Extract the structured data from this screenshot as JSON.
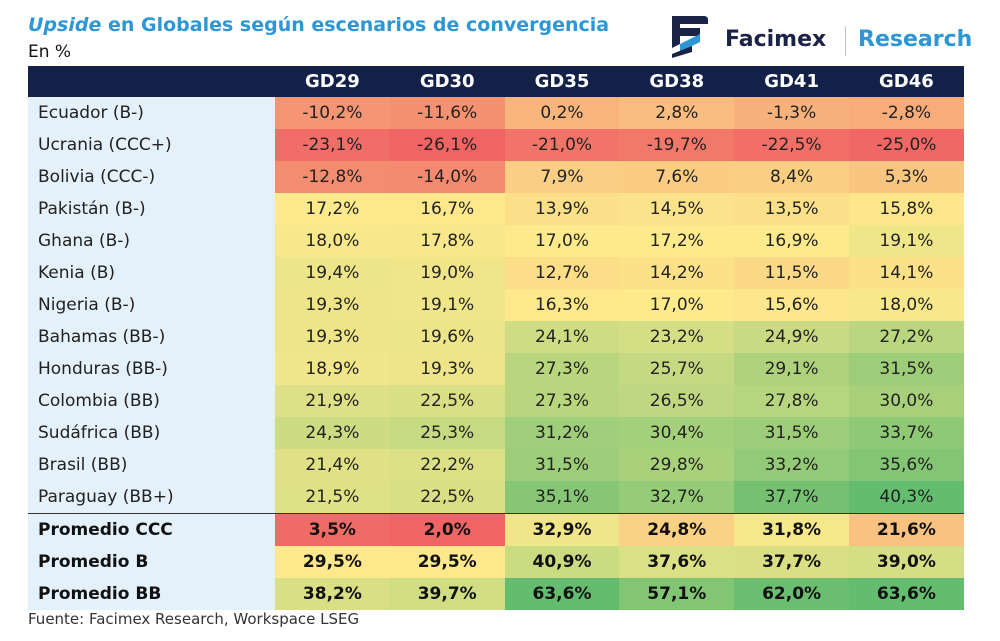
{
  "title": {
    "italic": "Upside",
    "rest": "en Globales según escenarios de convergencia"
  },
  "subtitle": "En %",
  "logo": {
    "brand": "Facimex",
    "research": "Research"
  },
  "source": "Fuente: Facimex Research, Workspace LSEG",
  "colors": {
    "header_bg": "#132148",
    "accent": "#2d96d4",
    "label_bg": "#e4f0fa"
  },
  "chart_data": {
    "type": "heatmap",
    "title": "Upside en Globales según escenarios de convergencia",
    "unit": "%",
    "columns": [
      "GD29",
      "GD30",
      "GD35",
      "GD38",
      "GD41",
      "GD46"
    ],
    "rows": [
      {
        "label": "Ecuador (B-)",
        "values": [
          -10.2,
          -11.6,
          0.2,
          2.8,
          -1.3,
          -2.8
        ],
        "display": [
          "-10,2%",
          "-11,6%",
          "0,2%",
          "2,8%",
          "-1,3%",
          "-2,8%"
        ]
      },
      {
        "label": "Ucrania (CCC+)",
        "values": [
          -23.1,
          -26.1,
          -21.0,
          -19.7,
          -22.5,
          -25.0
        ],
        "display": [
          "-23,1%",
          "-26,1%",
          "-21,0%",
          "-19,7%",
          "-22,5%",
          "-25,0%"
        ]
      },
      {
        "label": "Bolivia (CCC-)",
        "values": [
          -12.8,
          -14.0,
          7.9,
          7.6,
          8.4,
          5.3
        ],
        "display": [
          "-12,8%",
          "-14,0%",
          "7,9%",
          "7,6%",
          "8,4%",
          "5,3%"
        ]
      },
      {
        "label": "Pakistán (B-)",
        "values": [
          17.2,
          16.7,
          13.9,
          14.5,
          13.5,
          15.8
        ],
        "display": [
          "17,2%",
          "16,7%",
          "13,9%",
          "14,5%",
          "13,5%",
          "15,8%"
        ]
      },
      {
        "label": "Ghana (B-)",
        "values": [
          18.0,
          17.8,
          17.0,
          17.2,
          16.9,
          19.1
        ],
        "display": [
          "18,0%",
          "17,8%",
          "17,0%",
          "17,2%",
          "16,9%",
          "19,1%"
        ]
      },
      {
        "label": "Kenia (B)",
        "values": [
          19.4,
          19.0,
          12.7,
          14.2,
          11.5,
          14.1
        ],
        "display": [
          "19,4%",
          "19,0%",
          "12,7%",
          "14,2%",
          "11,5%",
          "14,1%"
        ]
      },
      {
        "label": "Nigeria (B-)",
        "values": [
          19.3,
          19.1,
          16.3,
          17.0,
          15.6,
          18.0
        ],
        "display": [
          "19,3%",
          "19,1%",
          "16,3%",
          "17,0%",
          "15,6%",
          "18,0%"
        ]
      },
      {
        "label": "Bahamas (BB-)",
        "values": [
          19.3,
          19.6,
          24.1,
          23.2,
          24.9,
          27.2
        ],
        "display": [
          "19,3%",
          "19,6%",
          "24,1%",
          "23,2%",
          "24,9%",
          "27,2%"
        ]
      },
      {
        "label": "Honduras (BB-)",
        "values": [
          18.9,
          19.3,
          27.3,
          25.7,
          29.1,
          31.5
        ],
        "display": [
          "18,9%",
          "19,3%",
          "27,3%",
          "25,7%",
          "29,1%",
          "31,5%"
        ]
      },
      {
        "label": "Colombia (BB)",
        "values": [
          21.9,
          22.5,
          27.3,
          26.5,
          27.8,
          30.0
        ],
        "display": [
          "21,9%",
          "22,5%",
          "27,3%",
          "26,5%",
          "27,8%",
          "30,0%"
        ]
      },
      {
        "label": "Sudáfrica (BB)",
        "values": [
          24.3,
          25.3,
          31.2,
          30.4,
          31.5,
          33.7
        ],
        "display": [
          "24,3%",
          "25,3%",
          "31,2%",
          "30,4%",
          "31,5%",
          "33,7%"
        ]
      },
      {
        "label": "Brasil (BB)",
        "values": [
          21.4,
          22.2,
          31.5,
          29.8,
          33.2,
          35.6
        ],
        "display": [
          "21,4%",
          "22,2%",
          "31,5%",
          "29,8%",
          "33,2%",
          "35,6%"
        ]
      },
      {
        "label": "Paraguay (BB+)",
        "values": [
          21.5,
          22.5,
          35.1,
          32.7,
          37.7,
          40.3
        ],
        "display": [
          "21,5%",
          "22,5%",
          "35,1%",
          "32,7%",
          "37,7%",
          "40,3%"
        ]
      }
    ],
    "averages": [
      {
        "label": "Promedio CCC",
        "values": [
          3.5,
          2.0,
          32.9,
          24.8,
          31.8,
          21.6
        ],
        "display": [
          "3,5%",
          "2,0%",
          "32,9%",
          "24,8%",
          "31,8%",
          "21,6%"
        ]
      },
      {
        "label": "Promedio B",
        "values": [
          29.5,
          29.5,
          40.9,
          37.6,
          37.7,
          39.0
        ],
        "display": [
          "29,5%",
          "29,5%",
          "40,9%",
          "37,6%",
          "37,7%",
          "39,0%"
        ]
      },
      {
        "label": "Promedio BB",
        "values": [
          38.2,
          39.7,
          63.6,
          57.1,
          62.0,
          63.6
        ],
        "display": [
          "38,2%",
          "39,7%",
          "63,6%",
          "57,1%",
          "62,0%",
          "63,6%"
        ]
      }
    ]
  }
}
